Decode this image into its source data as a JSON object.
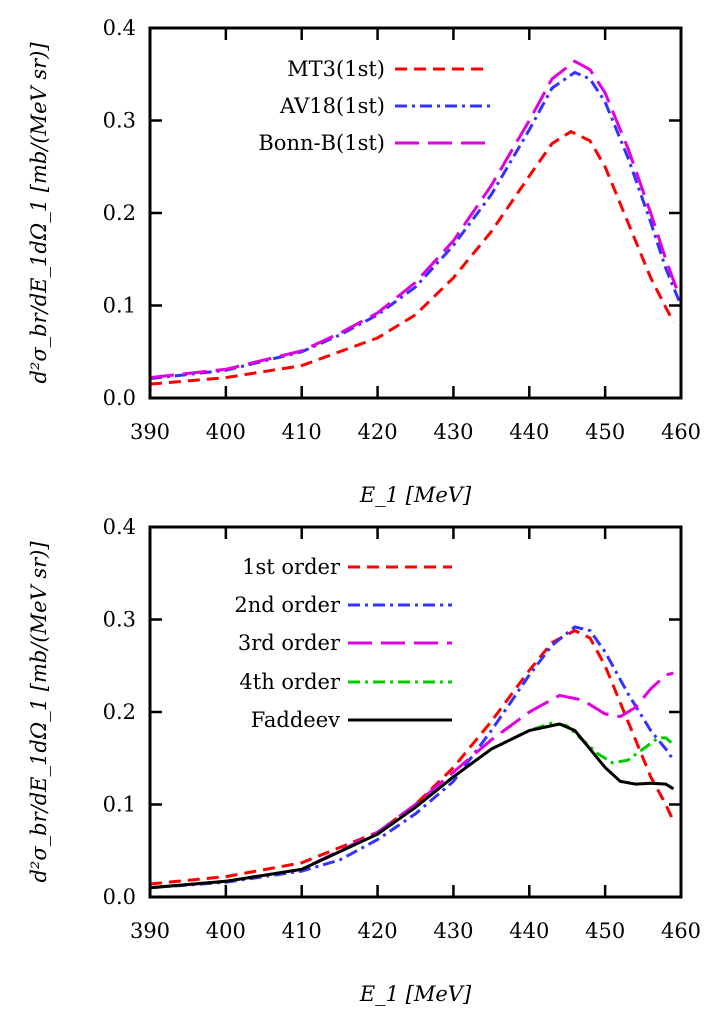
{
  "chart_data": [
    {
      "type": "line",
      "xlabel": "E_1 [MeV]",
      "ylabel": "d²σ_br/dE_1dΩ_1 [mb/(MeV sr)]",
      "xlim": [
        390,
        460
      ],
      "ylim": [
        0,
        0.4
      ],
      "xticks": [
        "390",
        "400",
        "410",
        "420",
        "430",
        "440",
        "450",
        "460"
      ],
      "yticks": [
        "0.0",
        "0.1",
        "0.2",
        "0.3",
        "0.4"
      ],
      "legend": "top-center",
      "grid": false,
      "series": [
        {
          "name": "MT3(1st)",
          "color": "#ff0000",
          "dash": "dash",
          "x": [
            390,
            400,
            410,
            420,
            425,
            430,
            435,
            440,
            443,
            445.5,
            448,
            450,
            453,
            456,
            458,
            459
          ],
          "y": [
            0.015,
            0.022,
            0.035,
            0.065,
            0.09,
            0.13,
            0.18,
            0.24,
            0.275,
            0.288,
            0.278,
            0.25,
            0.19,
            0.13,
            0.098,
            0.082
          ]
        },
        {
          "name": "AV18(1st)",
          "color": "#3333ff",
          "dash": "dashdot",
          "x": [
            390,
            400,
            410,
            415,
            420,
            425,
            430,
            435,
            440,
            443,
            446,
            448,
            450,
            453,
            456,
            458,
            460
          ],
          "y": [
            0.021,
            0.03,
            0.05,
            0.068,
            0.09,
            0.12,
            0.165,
            0.22,
            0.29,
            0.335,
            0.352,
            0.345,
            0.32,
            0.26,
            0.19,
            0.14,
            0.1
          ]
        },
        {
          "name": "Bonn-B(1st)",
          "color": "#e000e0",
          "dash": "longdash",
          "x": [
            390,
            400,
            410,
            415,
            420,
            425,
            430,
            435,
            440,
            443,
            446,
            448,
            450,
            453,
            456,
            458,
            460
          ],
          "y": [
            0.022,
            0.031,
            0.051,
            0.07,
            0.092,
            0.125,
            0.17,
            0.23,
            0.3,
            0.345,
            0.364,
            0.355,
            0.33,
            0.27,
            0.2,
            0.15,
            0.105
          ]
        }
      ]
    },
    {
      "type": "line",
      "xlabel": "E_1 [MeV]",
      "ylabel": "d²σ_br/dE_1dΩ_1 [mb/(MeV sr)]",
      "xlim": [
        390,
        460
      ],
      "ylim": [
        0,
        0.4
      ],
      "xticks": [
        "390",
        "400",
        "410",
        "420",
        "430",
        "440",
        "450",
        "460"
      ],
      "yticks": [
        "0.0",
        "0.1",
        "0.2",
        "0.3",
        "0.4"
      ],
      "legend": "top-left",
      "grid": false,
      "series": [
        {
          "name": "1st order",
          "color": "#ff0000",
          "dash": "dash",
          "x": [
            390,
            400,
            410,
            420,
            425,
            430,
            435,
            440,
            443,
            446,
            448,
            450,
            453,
            456,
            458,
            459
          ],
          "y": [
            0.014,
            0.022,
            0.037,
            0.07,
            0.1,
            0.14,
            0.19,
            0.245,
            0.275,
            0.288,
            0.28,
            0.25,
            0.19,
            0.13,
            0.1,
            0.082
          ]
        },
        {
          "name": "2nd order",
          "color": "#3333ff",
          "dash": "dashdot",
          "x": [
            390,
            400,
            410,
            415,
            420,
            425,
            430,
            435,
            440,
            443,
            446,
            448,
            450,
            453,
            456,
            458,
            459
          ],
          "y": [
            0.01,
            0.016,
            0.028,
            0.04,
            0.062,
            0.09,
            0.125,
            0.18,
            0.24,
            0.272,
            0.292,
            0.288,
            0.265,
            0.22,
            0.18,
            0.16,
            0.148
          ]
        },
        {
          "name": "3rd order",
          "color": "#e000e0",
          "dash": "longdash",
          "x": [
            390,
            400,
            410,
            420,
            425,
            430,
            435,
            440,
            444,
            447,
            450,
            452,
            454,
            456,
            458,
            459
          ],
          "y": [
            0.01,
            0.017,
            0.03,
            0.07,
            0.1,
            0.135,
            0.17,
            0.2,
            0.218,
            0.213,
            0.198,
            0.195,
            0.205,
            0.225,
            0.24,
            0.242
          ]
        },
        {
          "name": "4th order",
          "color": "#00cc00",
          "dash": "dashdot",
          "x": [
            390,
            400,
            410,
            420,
            425,
            430,
            435,
            440,
            443,
            445,
            447,
            449,
            451,
            453,
            455,
            457,
            458,
            459
          ],
          "y": [
            0.01,
            0.017,
            0.03,
            0.068,
            0.097,
            0.13,
            0.16,
            0.18,
            0.188,
            0.185,
            0.17,
            0.155,
            0.145,
            0.148,
            0.16,
            0.172,
            0.172,
            0.165
          ]
        },
        {
          "name": "Faddeev",
          "color": "#000000",
          "dash": "solid",
          "x": [
            390,
            400,
            410,
            420,
            425,
            430,
            435,
            440,
            444,
            446,
            448,
            450,
            452,
            454,
            456,
            458,
            459
          ],
          "y": [
            0.01,
            0.017,
            0.03,
            0.068,
            0.097,
            0.13,
            0.16,
            0.18,
            0.187,
            0.18,
            0.16,
            0.14,
            0.125,
            0.122,
            0.123,
            0.122,
            0.117
          ]
        }
      ]
    }
  ]
}
